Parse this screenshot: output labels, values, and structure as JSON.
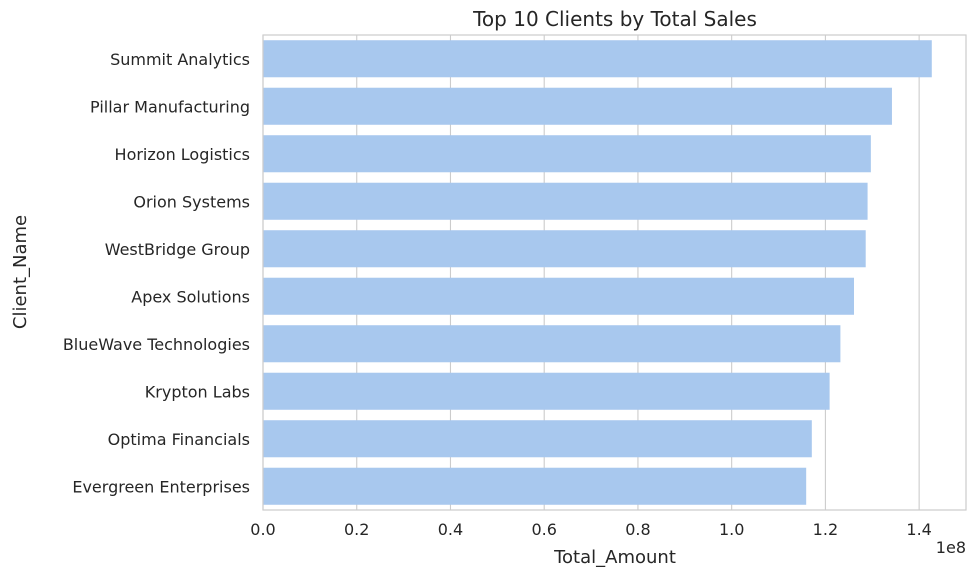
{
  "chart_data": {
    "type": "bar",
    "orientation": "horizontal",
    "title": "Top 10 Clients by Total Sales",
    "xlabel": "Total_Amount",
    "ylabel": "Client_Name",
    "x_offset_label": "1e8",
    "xlim": [
      0,
      1.5
    ],
    "xticks": [
      0.0,
      0.2,
      0.4,
      0.6,
      0.8,
      1.0,
      1.2,
      1.4
    ],
    "xtick_labels": [
      "0.0",
      "0.2",
      "0.4",
      "0.6",
      "0.8",
      "1.0",
      "1.2",
      "1.4"
    ],
    "grid": true,
    "bar_color": "#a8c8ee",
    "categories": [
      "Summit Analytics",
      "Pillar Manufacturing",
      "Horizon Logistics",
      "Orion Systems",
      "WestBridge Group",
      "Apex Solutions",
      "BlueWave Technologies",
      "Krypton Labs",
      "Optima Financials",
      "Evergreen Enterprises"
    ],
    "values": [
      1.427,
      1.342,
      1.297,
      1.29,
      1.286,
      1.261,
      1.232,
      1.209,
      1.171,
      1.159
    ]
  }
}
